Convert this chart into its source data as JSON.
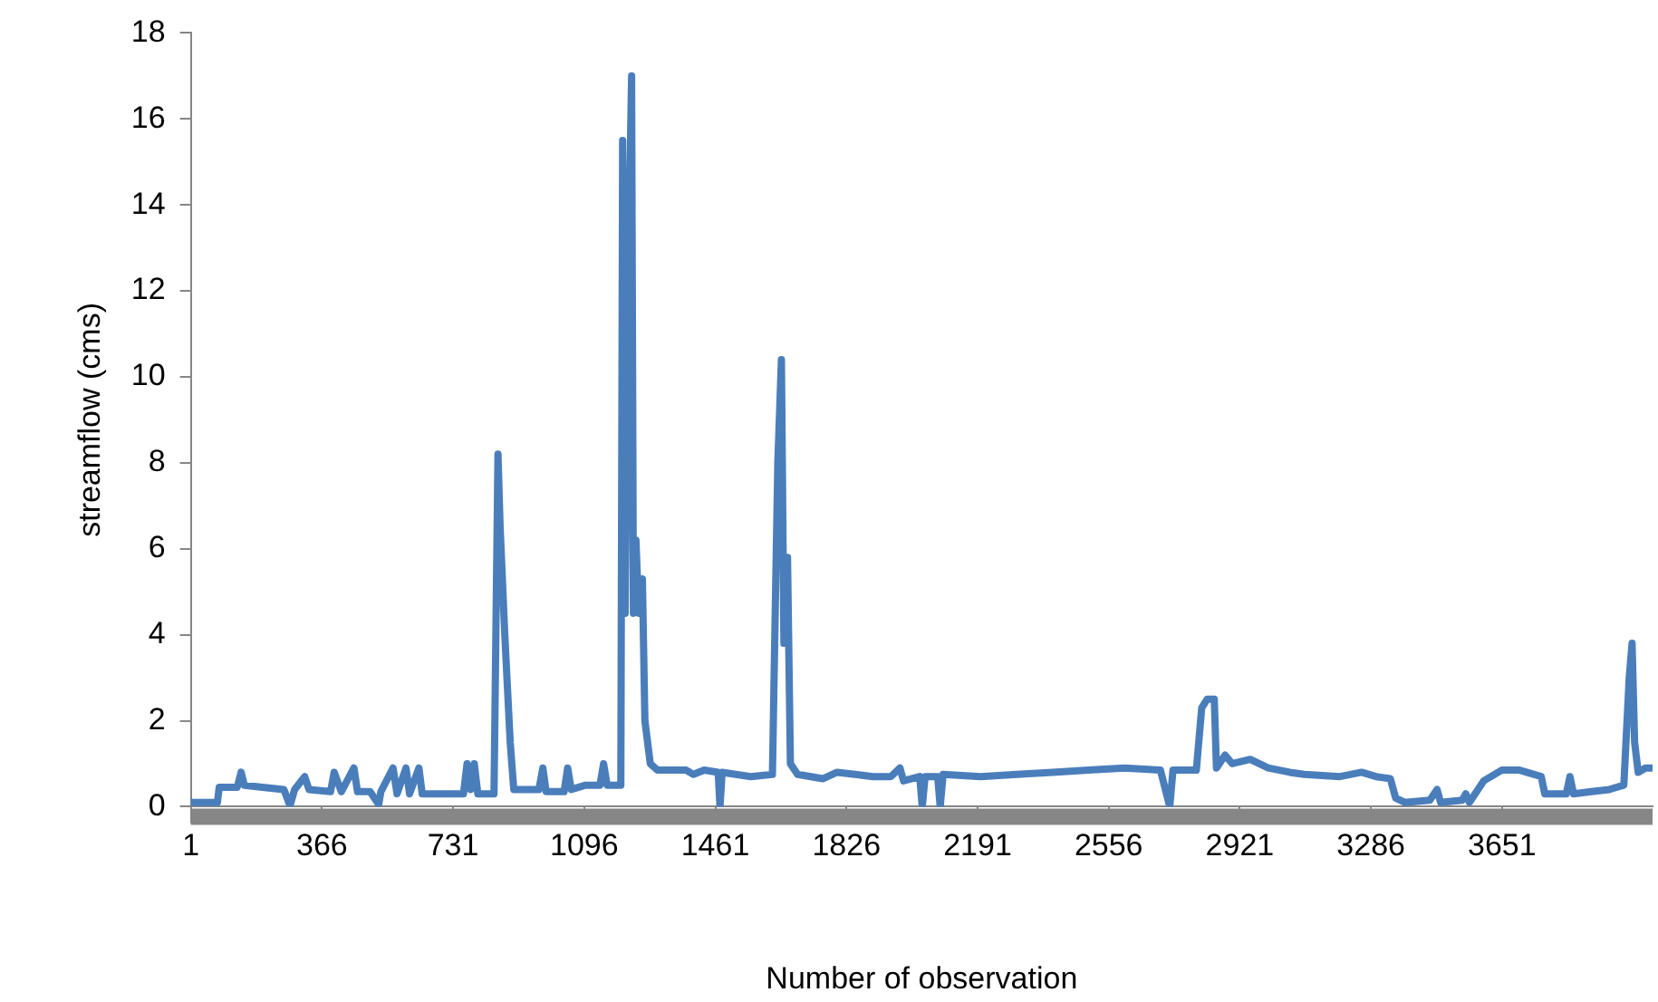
{
  "chart_data": {
    "type": "line",
    "xlabel": "Number of observation",
    "ylabel": "streamflow (cms)",
    "xlim": [
      1,
      4070
    ],
    "xticks": [
      1,
      366,
      731,
      1096,
      1461,
      1826,
      2191,
      2556,
      2921,
      3286,
      3651
    ],
    "ylim": [
      0,
      18
    ],
    "yticks": [
      0,
      2,
      4,
      6,
      8,
      10,
      12,
      14,
      16,
      18
    ],
    "grid": false,
    "legend": false,
    "marker": "none",
    "line_style": "solid",
    "series": [
      {
        "color": "#4a7ebb",
        "x": [
          1,
          60,
          75,
          80,
          130,
          141,
          150,
          200,
          260,
          277,
          290,
          318,
          330,
          390,
          400,
          420,
          455,
          465,
          500,
          524,
          530,
          564,
          575,
          600,
          610,
          636,
          645,
          700,
          760,
          770,
          780,
          790,
          800,
          845,
          856,
          862,
          875,
          890,
          900,
          970,
          981,
          990,
          1040,
          1050,
          1060,
          1100,
          1140,
          1150,
          1160,
          1198,
          1203,
          1210,
          1218,
          1228,
          1233,
          1240,
          1248,
          1258,
          1265,
          1280,
          1300,
          1380,
          1400,
          1430,
          1469,
          1474,
          1480,
          1560,
          1620,
          1635,
          1645,
          1652,
          1662,
          1670,
          1690,
          1760,
          1800,
          1850,
          1900,
          1950,
          1975,
          1985,
          2030,
          2037,
          2045,
          2080,
          2087,
          2095,
          2200,
          2300,
          2400,
          2500,
          2600,
          2700,
          2726,
          2735,
          2800,
          2815,
          2830,
          2850,
          2856,
          2880,
          2900,
          2950,
          3000,
          3060,
          3100,
          3200,
          3260,
          3300,
          3340,
          3355,
          3380,
          3450,
          3470,
          3480,
          3540,
          3550,
          3560,
          3600,
          3650,
          3700,
          3760,
          3770,
          3830,
          3840,
          3850,
          3900,
          3950,
          3990,
          4005,
          4013,
          4020,
          4030,
          4050,
          4070
        ],
        "values": [
          0.1,
          0.1,
          0.1,
          0.45,
          0.45,
          0.8,
          0.5,
          0.45,
          0.4,
          0.02,
          0.4,
          0.7,
          0.4,
          0.35,
          0.8,
          0.35,
          0.9,
          0.35,
          0.35,
          0.05,
          0.35,
          0.9,
          0.3,
          0.9,
          0.3,
          0.9,
          0.3,
          0.3,
          0.3,
          1.0,
          0.4,
          1.0,
          0.3,
          0.3,
          8.2,
          6.5,
          4.0,
          1.5,
          0.4,
          0.4,
          0.9,
          0.35,
          0.35,
          0.9,
          0.4,
          0.5,
          0.5,
          1.0,
          0.5,
          0.5,
          15.5,
          4.5,
          12.0,
          17.0,
          4.5,
          6.2,
          4.5,
          5.3,
          2.0,
          1.0,
          0.85,
          0.85,
          0.75,
          0.85,
          0.8,
          0.0,
          0.8,
          0.7,
          0.75,
          8.0,
          10.4,
          3.8,
          5.8,
          1.0,
          0.75,
          0.65,
          0.8,
          0.75,
          0.7,
          0.7,
          0.9,
          0.6,
          0.7,
          0.0,
          0.7,
          0.7,
          0.0,
          0.75,
          0.7,
          0.75,
          0.8,
          0.85,
          0.9,
          0.85,
          0.0,
          0.85,
          0.85,
          2.3,
          2.5,
          2.5,
          0.9,
          1.2,
          1.0,
          1.1,
          0.9,
          0.8,
          0.75,
          0.7,
          0.8,
          0.7,
          0.65,
          0.2,
          0.1,
          0.15,
          0.4,
          0.1,
          0.15,
          0.3,
          0.1,
          0.6,
          0.85,
          0.85,
          0.7,
          0.3,
          0.3,
          0.7,
          0.3,
          0.35,
          0.4,
          0.5,
          3.0,
          3.8,
          1.5,
          0.8,
          0.9,
          0.9
        ]
      }
    ]
  }
}
